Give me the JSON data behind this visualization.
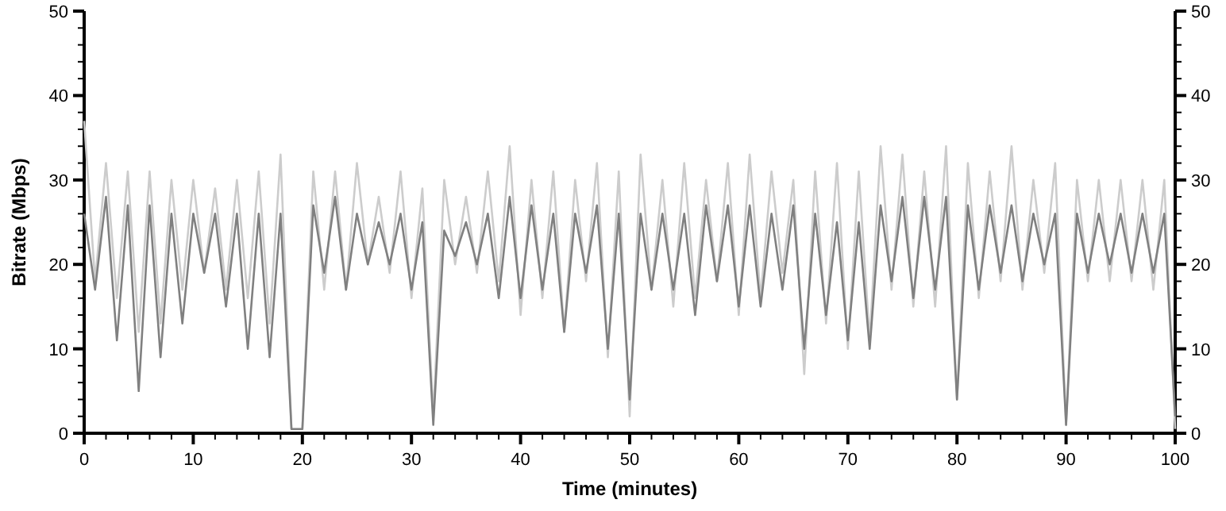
{
  "chart_data": {
    "type": "line",
    "xlabel": "Time (minutes)",
    "ylabel": "Bitrate (Mbps)",
    "xlim": [
      0,
      100
    ],
    "ylim": [
      0,
      50
    ],
    "y2lim": [
      0,
      50
    ],
    "xticks": [
      0,
      {
        "value": 2,
        "label": null
      },
      {
        "value": 4,
        "label": null
      },
      {
        "value": 6,
        "label": null
      },
      {
        "value": 8,
        "label": null
      },
      10,
      {
        "value": 12,
        "label": null
      },
      {
        "value": 14,
        "label": null
      },
      {
        "value": 16,
        "label": null
      },
      {
        "value": 18,
        "label": null
      },
      20,
      {
        "value": 22,
        "label": null
      },
      {
        "value": 24,
        "label": null
      },
      {
        "value": 26,
        "label": null
      },
      {
        "value": 28,
        "label": null
      },
      30,
      {
        "value": 32,
        "label": null
      },
      {
        "value": 34,
        "label": null
      },
      {
        "value": 36,
        "label": null
      },
      {
        "value": 38,
        "label": null
      },
      40,
      {
        "value": 42,
        "label": null
      },
      {
        "value": 44,
        "label": null
      },
      {
        "value": 46,
        "label": null
      },
      {
        "value": 48,
        "label": null
      },
      50,
      {
        "value": 52,
        "label": null
      },
      {
        "value": 54,
        "label": null
      },
      {
        "value": 56,
        "label": null
      },
      {
        "value": 58,
        "label": null
      },
      60,
      {
        "value": 62,
        "label": null
      },
      {
        "value": 64,
        "label": null
      },
      {
        "value": 66,
        "label": null
      },
      {
        "value": 68,
        "label": null
      },
      70,
      {
        "value": 72,
        "label": null
      },
      {
        "value": 74,
        "label": null
      },
      {
        "value": 76,
        "label": null
      },
      {
        "value": 78,
        "label": null
      },
      80,
      {
        "value": 82,
        "label": null
      },
      {
        "value": 84,
        "label": null
      },
      {
        "value": 86,
        "label": null
      },
      {
        "value": 88,
        "label": null
      },
      90,
      {
        "value": 92,
        "label": null
      },
      {
        "value": 94,
        "label": null
      },
      {
        "value": 96,
        "label": null
      },
      {
        "value": 98,
        "label": null
      },
      100
    ],
    "yticks": [
      0,
      {
        "value": 2,
        "label": null
      },
      {
        "value": 4,
        "label": null
      },
      {
        "value": 6,
        "label": null
      },
      {
        "value": 8,
        "label": null
      },
      10,
      {
        "value": 12,
        "label": null
      },
      {
        "value": 14,
        "label": null
      },
      {
        "value": 16,
        "label": null
      },
      {
        "value": 18,
        "label": null
      },
      20,
      {
        "value": 22,
        "label": null
      },
      {
        "value": 24,
        "label": null
      },
      {
        "value": 26,
        "label": null
      },
      {
        "value": 28,
        "label": null
      },
      30,
      {
        "value": 32,
        "label": null
      },
      {
        "value": 34,
        "label": null
      },
      {
        "value": 36,
        "label": null
      },
      {
        "value": 38,
        "label": null
      },
      40,
      {
        "value": 42,
        "label": null
      },
      {
        "value": 44,
        "label": null
      },
      {
        "value": 46,
        "label": null
      },
      {
        "value": 48,
        "label": null
      },
      50
    ],
    "y2ticks": [
      0,
      {
        "value": 2,
        "label": null
      },
      {
        "value": 4,
        "label": null
      },
      {
        "value": 6,
        "label": null
      },
      {
        "value": 8,
        "label": null
      },
      10,
      {
        "value": 12,
        "label": null
      },
      {
        "value": 14,
        "label": null
      },
      {
        "value": 16,
        "label": null
      },
      {
        "value": 18,
        "label": null
      },
      20,
      {
        "value": 22,
        "label": null
      },
      {
        "value": 24,
        "label": null
      },
      {
        "value": 26,
        "label": null
      },
      {
        "value": 28,
        "label": null
      },
      30,
      {
        "value": 32,
        "label": null
      },
      {
        "value": 34,
        "label": null
      },
      {
        "value": 36,
        "label": null
      },
      {
        "value": 38,
        "label": null
      },
      40,
      {
        "value": 42,
        "label": null
      },
      {
        "value": 44,
        "label": null
      },
      {
        "value": 46,
        "label": null
      },
      {
        "value": 48,
        "label": null
      },
      50
    ],
    "x": [
      0,
      1,
      2,
      3,
      4,
      5,
      6,
      7,
      8,
      9,
      10,
      11,
      12,
      13,
      14,
      15,
      16,
      17,
      18,
      19,
      20,
      21,
      22,
      23,
      24,
      25,
      26,
      27,
      28,
      29,
      30,
      31,
      32,
      33,
      34,
      35,
      36,
      37,
      38,
      39,
      40,
      41,
      42,
      43,
      44,
      45,
      46,
      47,
      48,
      49,
      50,
      51,
      52,
      53,
      54,
      55,
      56,
      57,
      58,
      59,
      60,
      61,
      62,
      63,
      64,
      65,
      66,
      67,
      68,
      69,
      70,
      71,
      72,
      73,
      74,
      75,
      76,
      77,
      78,
      79,
      80,
      81,
      82,
      83,
      84,
      85,
      86,
      87,
      88,
      89,
      90,
      91,
      92,
      93,
      94,
      95,
      96,
      97,
      98,
      99,
      100
    ],
    "series": [
      {
        "color": "#cccccc",
        "values": [
          37,
          18,
          32,
          16,
          31,
          12,
          31,
          13,
          30,
          17,
          30,
          19,
          29,
          17,
          30,
          16,
          31,
          13,
          33,
          0.5,
          0.5,
          31,
          17,
          31,
          17,
          32,
          20,
          28,
          19,
          31,
          16,
          29,
          2,
          30,
          20,
          28,
          19,
          31,
          18,
          34,
          14,
          30,
          16,
          31,
          12,
          30,
          18,
          32,
          9,
          31,
          2,
          33,
          17,
          30,
          15,
          32,
          16,
          30,
          18,
          32,
          14,
          33,
          16,
          31,
          19,
          30,
          7,
          31,
          13,
          32,
          10,
          31,
          11,
          34,
          17,
          33,
          15,
          31,
          15,
          34,
          4,
          32,
          16,
          31,
          18,
          34,
          17,
          30,
          19,
          32,
          1,
          30,
          18,
          30,
          18,
          30,
          18,
          30,
          17,
          30,
          0.5
        ]
      },
      {
        "color": "#808080",
        "values": [
          26,
          17,
          28,
          11,
          27,
          5,
          27,
          9,
          26,
          13,
          26,
          19,
          26,
          15,
          26,
          10,
          26,
          9,
          26,
          0.5,
          0.5,
          27,
          19,
          28,
          17,
          26,
          20,
          25,
          20,
          26,
          17,
          25,
          1,
          24,
          21,
          25,
          20,
          26,
          16,
          28,
          16,
          27,
          17,
          26,
          12,
          26,
          19,
          27,
          10,
          26,
          4,
          26,
          17,
          26,
          17,
          26,
          14,
          27,
          18,
          27,
          15,
          27,
          15,
          26,
          17,
          27,
          10,
          26,
          14,
          25,
          11,
          25,
          10,
          27,
          18,
          28,
          16,
          28,
          17,
          28,
          4,
          27,
          17,
          27,
          19,
          27,
          18,
          26,
          20,
          26,
          1,
          26,
          19,
          26,
          20,
          26,
          19,
          26,
          19,
          26,
          2
        ]
      }
    ]
  }
}
